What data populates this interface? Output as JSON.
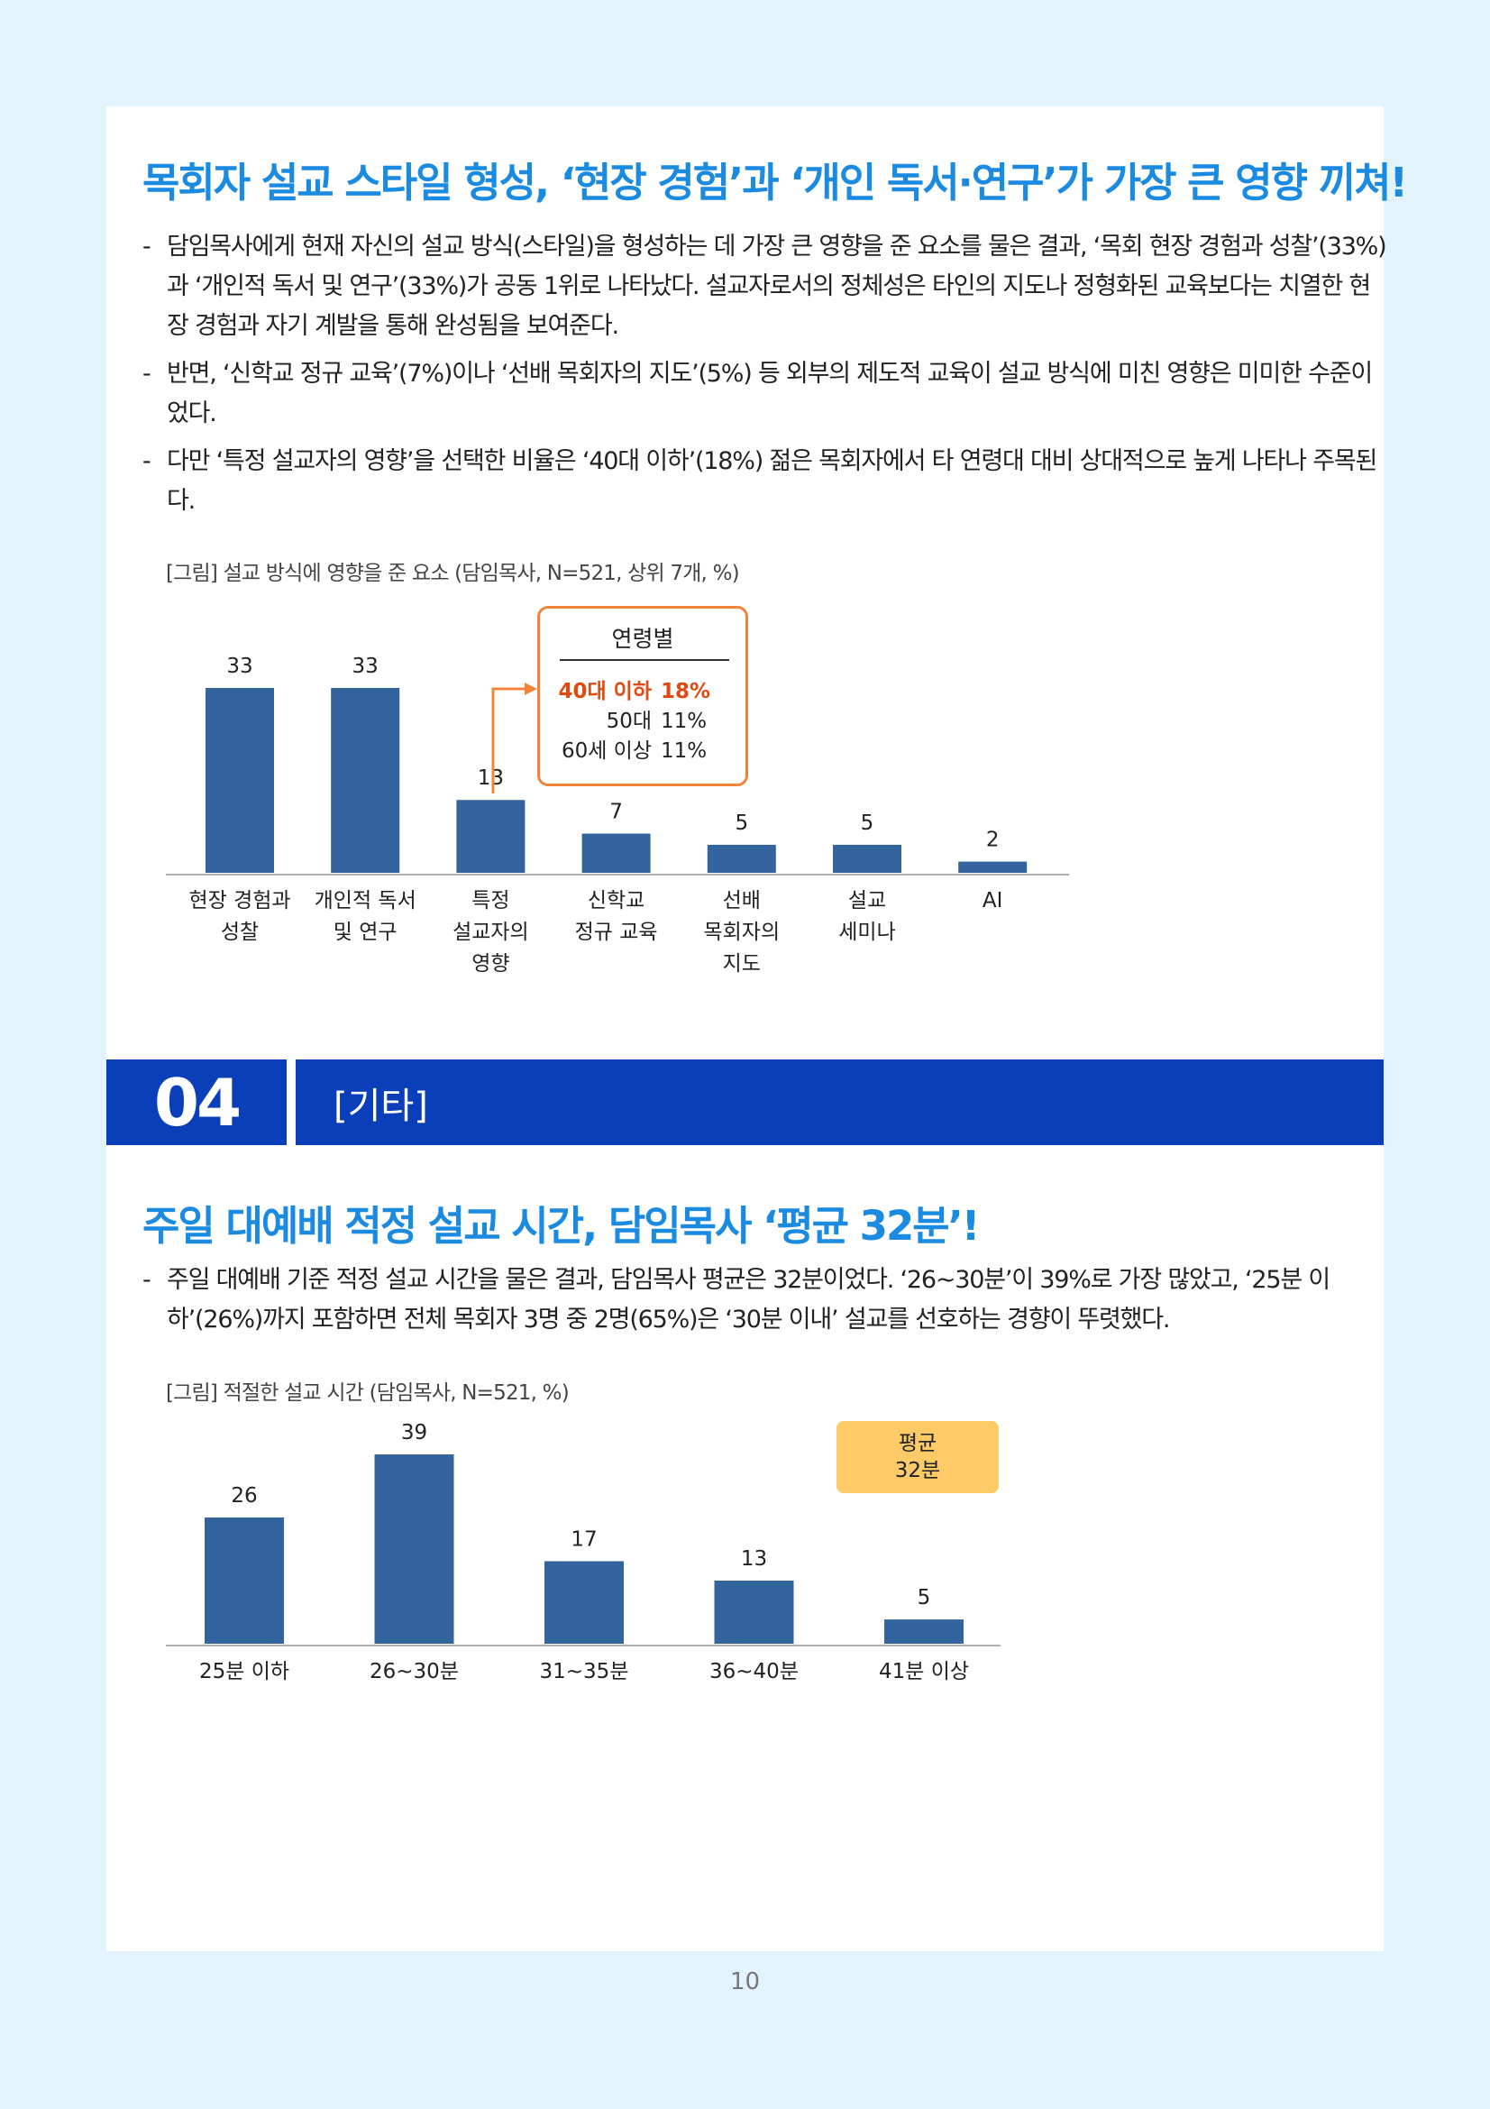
{
  "section1": {
    "headline": "목회자 설교 스타일 형성, ‘현장 경험’과 ‘개인 독서·연구’가 가장 큰 영향 끼쳐!",
    "bullets": [
      "담임목사에게 현재 자신의 설교 방식(스타일)을 형성하는 데 가장 큰 영향을 준 요소를 물은 결과, ‘목회 현장 경험과 성찰’(33%)과 ‘개인적 독서 및 연구’(33%)가 공동 1위로 나타났다. 설교자로서의 정체성은 타인의 지도나 정형화된 교육보다는 치열한 현장 경험과 자기 계발을 통해 완성됨을 보여준다.",
      "반면, ‘신학교 정규 교육’(7%)이나 ‘선배 목회자의 지도’(5%) 등 외부의 제도적 교육이 설교 방식에 미친 영향은 미미한 수준이었다.",
      "다만 ‘특정 설교자의 영향’을 선택한 비율은 ‘40대 이하’(18%) 젊은 목회자에서 타 연령대 대비 상대적으로 높게 나타나 주목된다."
    ],
    "caption": "[그림] 설교 방식에 영향을 준 요소 (담임목사, N=521, 상위 7개, %)",
    "inset": {
      "title": "연령별",
      "rows": [
        {
          "label": "40대 이하",
          "value": "18%"
        },
        {
          "label": "50대",
          "value": "11%"
        },
        {
          "label": "60세 이상",
          "value": "11%"
        }
      ],
      "highlight_color": "#e04a10",
      "border_color": "#f1843a"
    }
  },
  "section_header": {
    "number": "04",
    "title": "[기타]"
  },
  "section2": {
    "headline": "주일 대예배 적정 설교 시간, 담임목사 ‘평균 32분’!",
    "bullets": [
      "주일 대예배 기준 적정 설교 시간을 물은 결과, 담임목사 평균은 32분이었다. ‘26~30분’이 39%로 가장 많았고, ‘25분 이하’(26%)까지 포함하면 전체 목회자 3명 중 2명(65%)은 ‘30분 이내’ 설교를 선호하는 경향이 뚜렷했다."
    ],
    "caption": "[그림] 적절한 설교 시간 (담임목사, N=521, %)",
    "avg_badge": {
      "line1": "평균",
      "line2": "32분"
    }
  },
  "chart_data": [
    {
      "type": "bar",
      "categories": [
        [
          "현장 경험과",
          "성찰"
        ],
        [
          "개인적 독서",
          "및 연구"
        ],
        [
          "특정",
          "설교자의",
          "영향"
        ],
        [
          "신학교",
          "정규 교육"
        ],
        [
          "선배",
          "목회자의",
          "지도"
        ],
        [
          "설교",
          "세미나"
        ],
        [
          "AI"
        ]
      ],
      "values": [
        33,
        33,
        13,
        7,
        5,
        5,
        2
      ],
      "ylim": [
        0,
        33
      ],
      "bar_color": "#34649e",
      "title": "",
      "xlabel": "",
      "ylabel": ""
    },
    {
      "type": "bar",
      "categories": [
        "25분 이하",
        "26~30분",
        "31~35분",
        "36~40분",
        "41분 이상"
      ],
      "values": [
        26,
        39,
        17,
        13,
        5
      ],
      "ylim": [
        0,
        39
      ],
      "bar_color": "#34649e",
      "title": "",
      "xlabel": "",
      "ylabel": ""
    }
  ],
  "page_number": "10"
}
